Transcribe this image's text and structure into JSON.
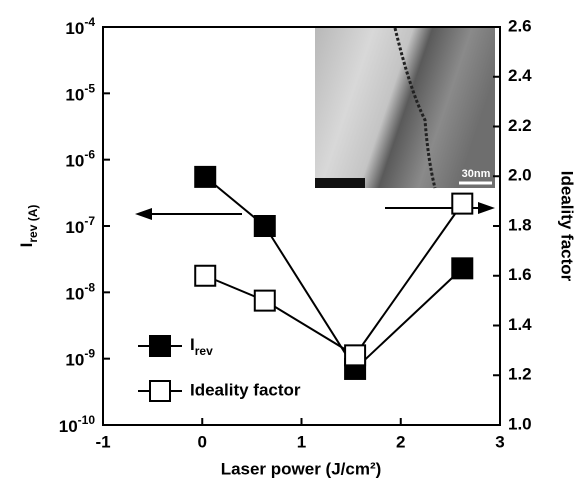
{
  "chart_data": {
    "type": "line",
    "xlabel": "Laser power (J/cm²)",
    "ylabel": "Irev (A)",
    "y2label": "Ideality factor",
    "inset_label": "30nm",
    "xlim": [
      -1,
      3
    ],
    "xticks": [
      -1,
      0,
      1,
      2,
      3
    ],
    "ylim": [
      1e-10,
      0.0001
    ],
    "yscale": "log",
    "yticks": [
      {
        "value": 1e-10,
        "label": "10-10"
      },
      {
        "value": 1e-09,
        "label": "10-9"
      },
      {
        "value": 1e-08,
        "label": "10-8"
      },
      {
        "value": 1e-07,
        "label": "10-7"
      },
      {
        "value": 1e-06,
        "label": "10-6"
      },
      {
        "value": 1e-05,
        "label": "10-5"
      },
      {
        "value": 0.0001,
        "label": "10-4"
      }
    ],
    "y2lim": [
      1.0,
      2.6
    ],
    "y2ticks": [
      {
        "value": 1.0,
        "label": "1.0"
      },
      1.2,
      1.4,
      1.6,
      1.8,
      {
        "value": 2.0,
        "label": "2.0"
      },
      2.2,
      2.4,
      2.6
    ],
    "legend": "lower left",
    "series": [
      {
        "name": "Irev",
        "color": "#000000",
        "filled": true,
        "axis": "y",
        "x": [
          0.03,
          0.63,
          1.54,
          2.62
        ],
        "values": [
          5.5e-07,
          1e-07,
          7e-10,
          2.3e-08
        ]
      },
      {
        "name": "Ideality factor",
        "color": "#000000",
        "filled": false,
        "axis": "y2",
        "x": [
          0.03,
          0.63,
          1.54,
          2.62
        ],
        "values": [
          1.6,
          1.5,
          1.28,
          1.89
        ]
      }
    ]
  }
}
